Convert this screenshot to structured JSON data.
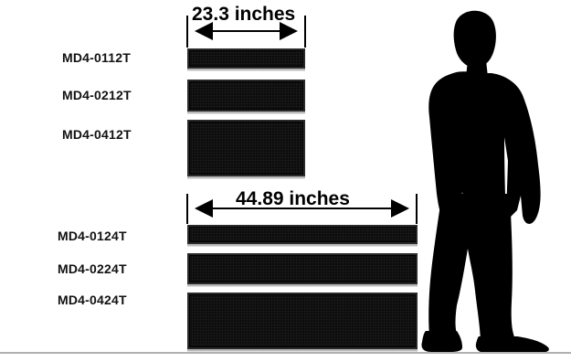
{
  "group_small": {
    "dimension": "23.3 inches",
    "models": [
      "MD4-0112T",
      "MD4-0212T",
      "MD4-0412T"
    ]
  },
  "group_large": {
    "dimension": "44.89 inches",
    "models": [
      "MD4-0124T",
      "MD4-0224T",
      "MD4-0424T"
    ]
  },
  "colors": {
    "sign_face": "#0c0c0c",
    "silhouette": "#000000",
    "baseline": "#b0b0b0"
  }
}
